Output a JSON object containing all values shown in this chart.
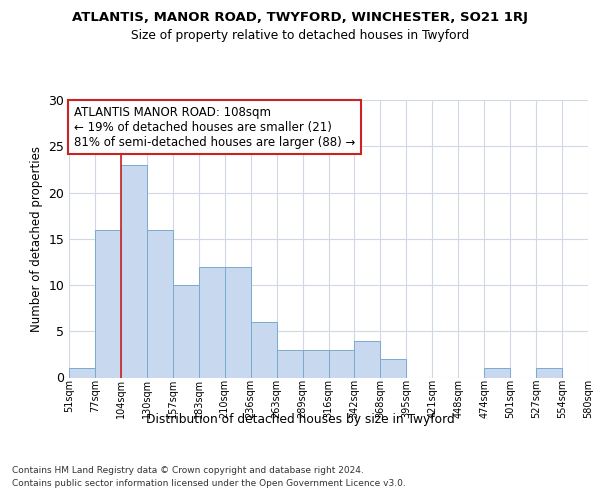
{
  "title1": "ATLANTIS, MANOR ROAD, TWYFORD, WINCHESTER, SO21 1RJ",
  "title2": "Size of property relative to detached houses in Twyford",
  "xlabel": "Distribution of detached houses by size in Twyford",
  "ylabel": "Number of detached properties",
  "bar_color": "#c8d8ee",
  "bar_edge_color": "#7aaad0",
  "vline_color": "#cc2222",
  "annotation_box_edge_color": "#cc2222",
  "annotation_text_line1": "ATLANTIS MANOR ROAD: 108sqm",
  "annotation_text_line2": "← 19% of detached houses are smaller (21)",
  "annotation_text_line3": "81% of semi-detached houses are larger (88) →",
  "categories": [
    "51sqm",
    "77sqm",
    "104sqm",
    "130sqm",
    "157sqm",
    "183sqm",
    "210sqm",
    "236sqm",
    "263sqm",
    "289sqm",
    "316sqm",
    "342sqm",
    "368sqm",
    "395sqm",
    "421sqm",
    "448sqm",
    "474sqm",
    "501sqm",
    "527sqm",
    "554sqm",
    "580sqm"
  ],
  "bar_heights": [
    1,
    16,
    23,
    16,
    10,
    12,
    12,
    6,
    3,
    3,
    3,
    4,
    2,
    0,
    0,
    0,
    1,
    0,
    1,
    0
  ],
  "vline_idx": 2,
  "ylim": [
    0,
    30
  ],
  "yticks": [
    0,
    5,
    10,
    15,
    20,
    25,
    30
  ],
  "footer_line1": "Contains HM Land Registry data © Crown copyright and database right 2024.",
  "footer_line2": "Contains public sector information licensed under the Open Government Licence v3.0.",
  "bg_color": "#ffffff",
  "grid_color": "#d0d8e8"
}
